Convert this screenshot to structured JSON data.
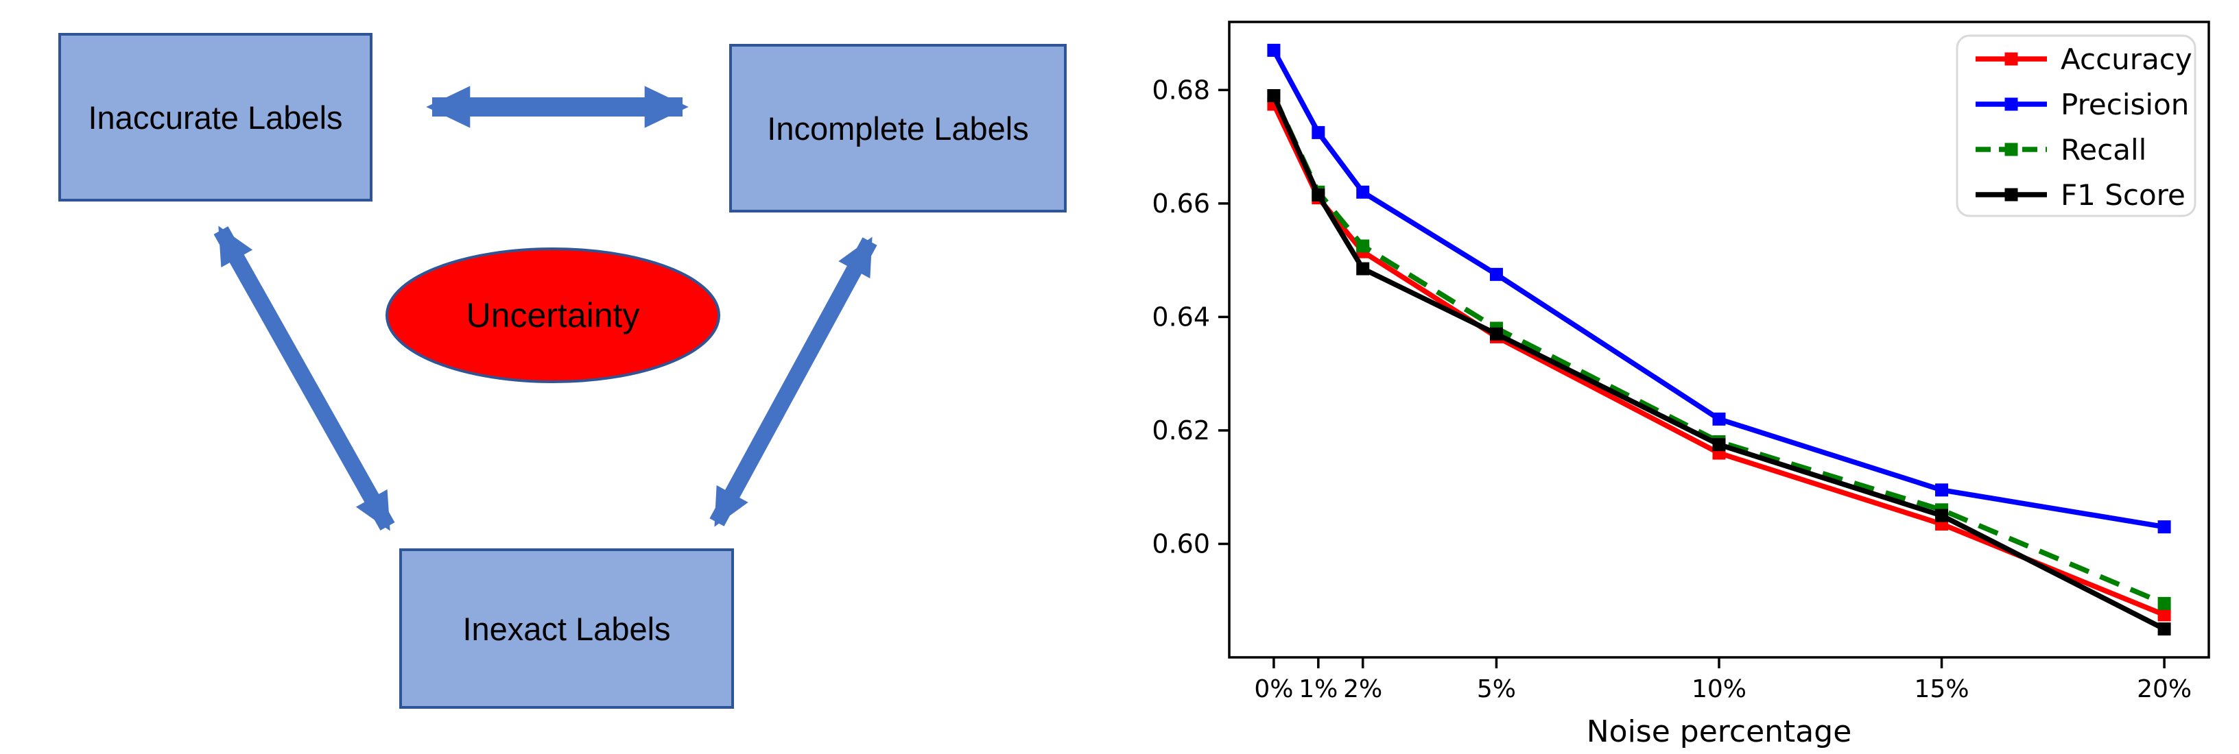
{
  "diagram": {
    "nodes": [
      {
        "id": "inaccurate",
        "label": "Inaccurate Labels"
      },
      {
        "id": "incomplete",
        "label": "Incomplete Labels"
      },
      {
        "id": "inexact",
        "label": "Inexact Labels"
      }
    ],
    "center_label": "Uncertainty",
    "colors": {
      "box_fill": "#8FAADC",
      "box_border": "#2F5597",
      "arrow": "#4472C4",
      "ellipse_fill": "#FF0000",
      "ellipse_border": "#2F5597",
      "text": "#000000"
    }
  },
  "chart_data": {
    "type": "line",
    "title": "",
    "xlabel": "Noise percentage",
    "ylabel": "",
    "x": [
      0,
      1,
      2,
      5,
      10,
      15,
      20
    ],
    "x_tick_labels": [
      "0%",
      "1%",
      "2%",
      "5%",
      "10%",
      "15%",
      "20%"
    ],
    "y_ticks": [
      0.6,
      0.62,
      0.64,
      0.66,
      0.68
    ],
    "y_tick_labels": [
      "0.60",
      "0.62",
      "0.64",
      "0.66",
      "0.68"
    ],
    "xlim": [
      -1,
      21
    ],
    "ylim": [
      0.58,
      0.692
    ],
    "grid": false,
    "legend_position": "upper right",
    "series": [
      {
        "name": "Accuracy",
        "color": "#FF0000",
        "style": "solid",
        "marker": "square",
        "values": [
          0.6775,
          0.661,
          0.6515,
          0.6365,
          0.616,
          0.6035,
          0.5875
        ]
      },
      {
        "name": "Precision",
        "color": "#0000FF",
        "style": "solid",
        "marker": "square",
        "values": [
          0.687,
          0.6725,
          0.662,
          0.6475,
          0.622,
          0.6095,
          0.603
        ]
      },
      {
        "name": "Recall",
        "color": "#008000",
        "style": "dashed",
        "marker": "square",
        "values": [
          0.679,
          0.662,
          0.6525,
          0.638,
          0.618,
          0.606,
          0.5895
        ]
      },
      {
        "name": "F1 Score",
        "color": "#000000",
        "style": "solid",
        "marker": "square",
        "values": [
          0.679,
          0.6615,
          0.6485,
          0.637,
          0.6175,
          0.605,
          0.585
        ]
      }
    ]
  }
}
